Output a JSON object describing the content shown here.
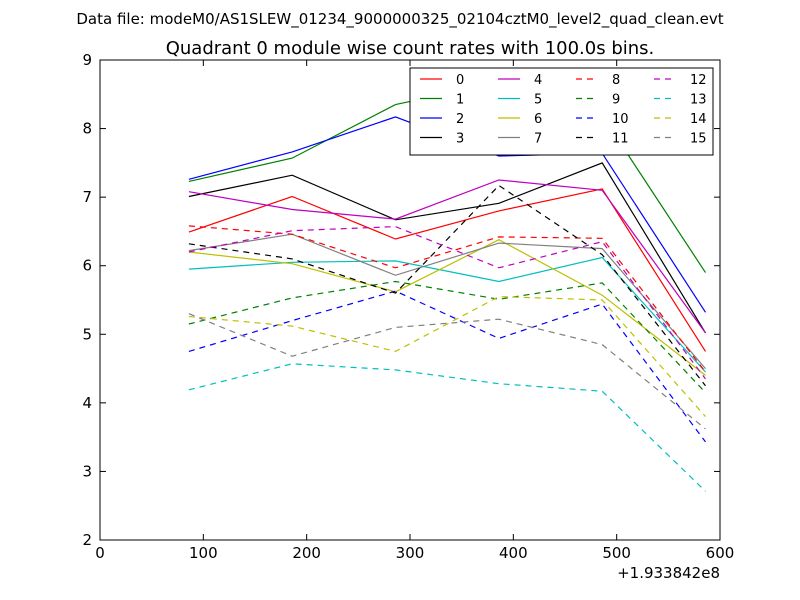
{
  "suptitle": "Data file: modeM0/AS1SLEW_01234_9000000325_02104cztM0_level2_quad_clean.evt",
  "chart_data": {
    "type": "line",
    "title": "Quadrant 0 module wise count rates with 100.0s bins.",
    "xlabel": "",
    "ylabel": "",
    "x_offset_label": "+1.933842e8",
    "xlim": [
      0,
      600
    ],
    "ylim": [
      2,
      9
    ],
    "xticks": [
      "0",
      "100",
      "200",
      "300",
      "400",
      "500",
      "600"
    ],
    "yticks": [
      "2",
      "3",
      "4",
      "5",
      "6",
      "7",
      "8",
      "9"
    ],
    "grid": false,
    "legend_position": "top-right",
    "x": [
      86,
      186,
      286,
      386,
      486,
      586
    ],
    "series": [
      {
        "name": "0",
        "color": "#ff0000",
        "dash": "solid",
        "values": [
          6.49,
          7.01,
          6.39,
          6.8,
          7.12,
          4.75
        ]
      },
      {
        "name": "1",
        "color": "#008000",
        "dash": "solid",
        "values": [
          7.23,
          7.57,
          8.35,
          8.67,
          8.19,
          5.9
        ]
      },
      {
        "name": "2",
        "color": "#0000ff",
        "dash": "solid",
        "values": [
          7.26,
          7.66,
          8.17,
          7.6,
          7.64,
          5.32
        ]
      },
      {
        "name": "3",
        "color": "#000000",
        "dash": "solid",
        "values": [
          7.01,
          7.32,
          6.67,
          6.91,
          7.5,
          5.02
        ]
      },
      {
        "name": "4",
        "color": "#bf00bf",
        "dash": "solid",
        "values": [
          7.08,
          6.82,
          6.68,
          7.25,
          7.1,
          5.02
        ]
      },
      {
        "name": "5",
        "color": "#00bfbf",
        "dash": "solid",
        "values": [
          5.95,
          6.05,
          6.07,
          5.77,
          6.12,
          4.45
        ]
      },
      {
        "name": "6",
        "color": "#bfbf00",
        "dash": "solid",
        "values": [
          6.2,
          6.03,
          5.62,
          6.38,
          5.57,
          4.4
        ]
      },
      {
        "name": "7",
        "color": "#808080",
        "dash": "solid",
        "values": [
          6.22,
          6.46,
          5.86,
          6.33,
          6.25,
          4.5
        ]
      },
      {
        "name": "8",
        "color": "#ff0000",
        "dash": "dashed",
        "values": [
          6.58,
          6.46,
          5.97,
          6.42,
          6.4,
          4.45
        ]
      },
      {
        "name": "9",
        "color": "#008000",
        "dash": "dashed",
        "values": [
          5.15,
          5.53,
          5.77,
          5.51,
          5.75,
          4.15
        ]
      },
      {
        "name": "10",
        "color": "#0000ff",
        "dash": "dashed",
        "values": [
          4.75,
          5.2,
          5.63,
          4.94,
          5.44,
          3.43
        ]
      },
      {
        "name": "11",
        "color": "#000000",
        "dash": "dashed",
        "values": [
          6.32,
          6.1,
          5.6,
          7.17,
          6.16,
          4.25
        ]
      },
      {
        "name": "12",
        "color": "#bf00bf",
        "dash": "dashed",
        "values": [
          6.2,
          6.51,
          6.57,
          5.97,
          6.35,
          4.35
        ]
      },
      {
        "name": "13",
        "color": "#00bfbf",
        "dash": "dashed",
        "values": [
          4.19,
          4.57,
          4.48,
          4.28,
          4.17,
          2.71
        ]
      },
      {
        "name": "14",
        "color": "#bfbf00",
        "dash": "dashed",
        "values": [
          5.26,
          5.12,
          4.75,
          5.55,
          5.5,
          3.8
        ]
      },
      {
        "name": "15",
        "color": "#808080",
        "dash": "dashed",
        "values": [
          5.3,
          4.68,
          5.1,
          5.22,
          4.85,
          3.62
        ]
      }
    ]
  }
}
